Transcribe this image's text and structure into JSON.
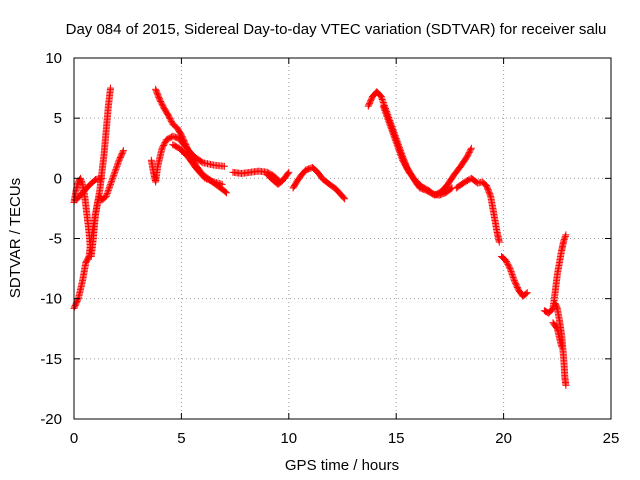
{
  "chart_data": {
    "type": "scatter",
    "title": "Day 084 of 2015, Sidereal Day-to-day VTEC variation (SDTVAR) for receiver salu",
    "xlabel": "GPS time / hours",
    "ylabel": "SDTVAR / TECUs",
    "xlim": [
      0,
      25
    ],
    "ylim": [
      -20,
      10
    ],
    "xticks": [
      0,
      5,
      10,
      15,
      20,
      25
    ],
    "yticks": [
      -20,
      -15,
      -10,
      -5,
      0,
      5,
      10
    ],
    "grid": true,
    "marker": "+",
    "color": "#ff0000",
    "series": [
      {
        "name": "SDTVAR",
        "segments": [
          [
            [
              0.0,
              -10.8
            ],
            [
              0.2,
              -10.0
            ],
            [
              0.4,
              -8.5
            ],
            [
              0.55,
              -7.0
            ],
            [
              0.7,
              -6.5
            ],
            [
              0.8,
              -5.0
            ],
            [
              0.9,
              -4.0
            ],
            [
              1.0,
              -3.0
            ],
            [
              1.1,
              -2.0
            ],
            [
              1.2,
              -1.0
            ],
            [
              1.3,
              0.5
            ],
            [
              1.4,
              2.0
            ],
            [
              1.5,
              4.0
            ],
            [
              1.6,
              6.0
            ],
            [
              1.7,
              7.5
            ]
          ],
          [
            [
              0.0,
              -2.0
            ],
            [
              0.1,
              -1.0
            ],
            [
              0.2,
              -0.3
            ],
            [
              0.3,
              0.0
            ],
            [
              0.4,
              -0.5
            ],
            [
              0.5,
              -1.5
            ],
            [
              0.6,
              -3.0
            ],
            [
              0.7,
              -4.5
            ],
            [
              0.8,
              -6.5
            ],
            [
              0.9,
              -5.0
            ],
            [
              1.0,
              -3.0
            ],
            [
              1.1,
              -2.0
            ],
            [
              1.2,
              -1.5
            ],
            [
              1.3,
              -1.8
            ],
            [
              1.5,
              -1.5
            ],
            [
              1.7,
              -0.5
            ],
            [
              1.9,
              0.5
            ],
            [
              2.1,
              1.5
            ],
            [
              2.3,
              2.3
            ]
          ],
          [
            [
              0.1,
              -1.8
            ],
            [
              0.4,
              -1.2
            ],
            [
              0.7,
              -0.6
            ],
            [
              1.0,
              -0.1
            ],
            [
              1.3,
              0.0
            ]
          ],
          [
            [
              3.6,
              1.5
            ],
            [
              3.7,
              0.5
            ],
            [
              3.8,
              -0.3
            ],
            [
              3.9,
              1.0
            ],
            [
              4.1,
              2.5
            ],
            [
              4.3,
              3.2
            ],
            [
              4.6,
              3.5
            ],
            [
              4.9,
              3.3
            ],
            [
              5.2,
              2.6
            ],
            [
              5.6,
              1.8
            ],
            [
              6.0,
              1.3
            ],
            [
              6.5,
              1.1
            ],
            [
              7.0,
              1.0
            ]
          ],
          [
            [
              3.8,
              7.4
            ],
            [
              4.0,
              6.5
            ],
            [
              4.2,
              5.8
            ],
            [
              4.4,
              5.2
            ],
            [
              4.6,
              4.5
            ],
            [
              4.8,
              4.2
            ],
            [
              5.0,
              3.6
            ],
            [
              5.2,
              2.8
            ],
            [
              5.4,
              2.0
            ],
            [
              5.7,
              1.0
            ],
            [
              6.0,
              0.3
            ],
            [
              6.3,
              -0.1
            ],
            [
              6.6,
              -0.5
            ],
            [
              6.9,
              -0.9
            ],
            [
              7.1,
              -1.2
            ]
          ],
          [
            [
              4.6,
              2.8
            ],
            [
              4.9,
              2.5
            ],
            [
              5.3,
              1.8
            ],
            [
              5.7,
              0.8
            ],
            [
              6.1,
              0.0
            ],
            [
              6.5,
              -0.3
            ],
            [
              6.9,
              -0.5
            ]
          ],
          [
            [
              7.4,
              0.5
            ],
            [
              7.8,
              0.4
            ],
            [
              8.2,
              0.5
            ],
            [
              8.6,
              0.6
            ],
            [
              9.0,
              0.5
            ],
            [
              9.3,
              0.2
            ],
            [
              9.6,
              -0.3
            ],
            [
              9.8,
              0.0
            ],
            [
              10.0,
              0.5
            ]
          ],
          [
            [
              9.0,
              0.3
            ],
            [
              9.3,
              -0.2
            ],
            [
              9.5,
              -0.5
            ],
            [
              9.7,
              -0.2
            ]
          ],
          [
            [
              10.2,
              -0.8
            ],
            [
              10.4,
              -0.2
            ],
            [
              10.6,
              0.3
            ],
            [
              10.8,
              0.7
            ],
            [
              11.1,
              0.9
            ],
            [
              11.3,
              0.6
            ],
            [
              11.6,
              -0.1
            ],
            [
              11.9,
              -0.5
            ],
            [
              12.2,
              -0.9
            ],
            [
              12.4,
              -1.3
            ],
            [
              12.6,
              -1.7
            ]
          ],
          [
            [
              13.7,
              6.0
            ],
            [
              13.9,
              6.8
            ],
            [
              14.1,
              7.2
            ],
            [
              14.3,
              6.8
            ],
            [
              14.5,
              5.8
            ],
            [
              14.7,
              4.8
            ],
            [
              14.9,
              3.8
            ],
            [
              15.1,
              2.8
            ],
            [
              15.3,
              1.8
            ],
            [
              15.5,
              0.9
            ],
            [
              15.7,
              0.3
            ],
            [
              15.9,
              -0.3
            ],
            [
              16.1,
              -0.8
            ],
            [
              16.4,
              -1.0
            ],
            [
              16.7,
              -1.3
            ],
            [
              17.0,
              -1.4
            ],
            [
              17.3,
              -1.2
            ],
            [
              17.6,
              -0.8
            ]
          ],
          [
            [
              14.4,
              6.0
            ],
            [
              14.7,
              4.5
            ],
            [
              15.0,
              3.0
            ],
            [
              15.3,
              1.5
            ],
            [
              15.6,
              0.5
            ],
            [
              15.9,
              -0.2
            ],
            [
              16.2,
              -0.7
            ],
            [
              16.5,
              -1.0
            ],
            [
              16.8,
              -1.4
            ],
            [
              17.1,
              -1.1
            ],
            [
              17.4,
              -0.5
            ],
            [
              17.7,
              0.3
            ],
            [
              18.0,
              1.0
            ],
            [
              18.3,
              1.8
            ],
            [
              18.5,
              2.5
            ]
          ],
          [
            [
              17.8,
              -0.8
            ],
            [
              18.2,
              -0.3
            ],
            [
              18.5,
              0.0
            ],
            [
              18.8,
              -0.4
            ],
            [
              19.0,
              -0.3
            ],
            [
              19.2,
              -0.6
            ],
            [
              19.4,
              -1.5
            ],
            [
              19.5,
              -2.5
            ],
            [
              19.6,
              -3.5
            ],
            [
              19.7,
              -4.5
            ],
            [
              19.8,
              -5.3
            ]
          ],
          [
            [
              19.9,
              -6.5
            ],
            [
              20.1,
              -6.8
            ],
            [
              20.3,
              -7.5
            ],
            [
              20.5,
              -8.5
            ],
            [
              20.7,
              -9.3
            ],
            [
              20.9,
              -9.8
            ],
            [
              21.1,
              -9.5
            ]
          ],
          [
            [
              21.9,
              -11.0
            ],
            [
              22.1,
              -11.2
            ],
            [
              22.3,
              -10.8
            ],
            [
              22.4,
              -9.5
            ],
            [
              22.5,
              -8.0
            ],
            [
              22.6,
              -7.0
            ],
            [
              22.7,
              -6.0
            ],
            [
              22.8,
              -5.2
            ],
            [
              22.9,
              -4.7
            ]
          ],
          [
            [
              22.4,
              -10.4
            ],
            [
              22.5,
              -10.8
            ],
            [
              22.6,
              -11.8
            ],
            [
              22.7,
              -13.0
            ],
            [
              22.8,
              -15.0
            ],
            [
              22.85,
              -16.5
            ],
            [
              22.9,
              -17.2
            ]
          ],
          [
            [
              22.3,
              -12.0
            ],
            [
              22.5,
              -12.5
            ],
            [
              22.7,
              -14.0
            ]
          ]
        ]
      }
    ]
  }
}
